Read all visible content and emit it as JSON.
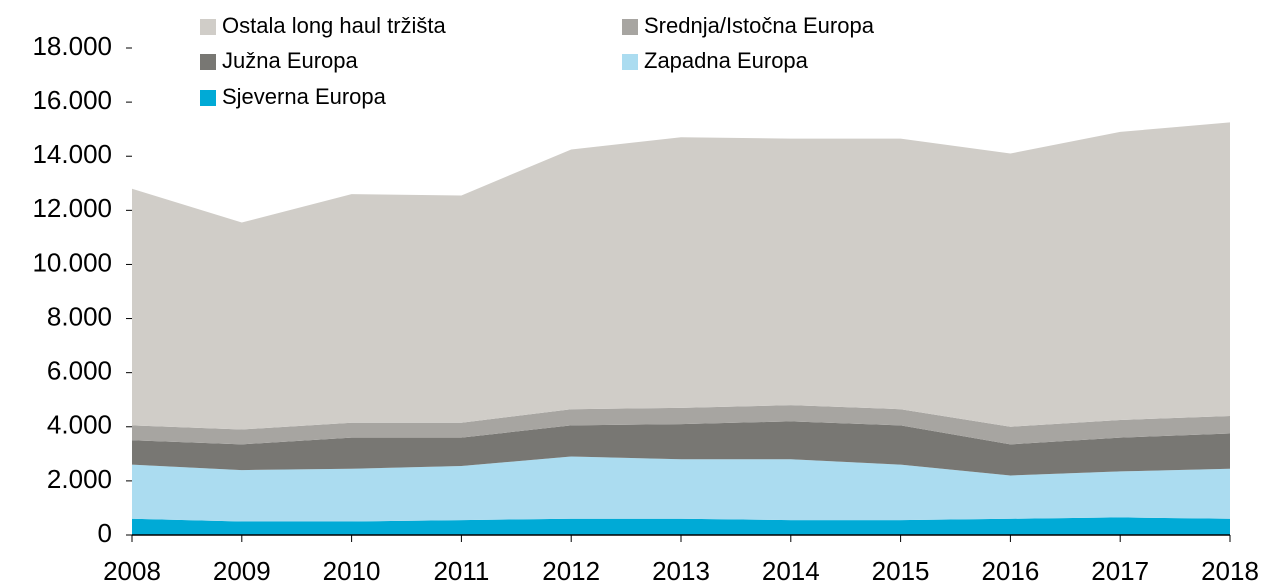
{
  "chart_data": {
    "type": "stacked-area",
    "x": [
      2008,
      2009,
      2010,
      2011,
      2012,
      2013,
      2014,
      2015,
      2016,
      2017,
      2018
    ],
    "xlim": [
      2008,
      2018
    ],
    "xticks": [
      2008,
      2009,
      2010,
      2011,
      2012,
      2013,
      2014,
      2015,
      2016,
      2017,
      2018
    ],
    "ylim": [
      0,
      18000
    ],
    "yticks": [
      0,
      {
        "value": 2000,
        "label": "2.000"
      },
      {
        "value": 4000,
        "label": "4.000"
      },
      {
        "value": 6000,
        "label": "6.000"
      },
      {
        "value": 8000,
        "label": "8.000"
      },
      {
        "value": 10000,
        "label": "10.000"
      },
      {
        "value": 12000,
        "label": "12.000"
      },
      {
        "value": 14000,
        "label": "14.000"
      },
      {
        "value": 16000,
        "label": "16.000"
      },
      {
        "value": 18000,
        "label": "18.000"
      }
    ],
    "series": [
      {
        "name": "Sjeverna Europa",
        "color": "#00aad6",
        "values": [
          600,
          500,
          500,
          550,
          600,
          600,
          550,
          550,
          600,
          650,
          600
        ]
      },
      {
        "name": "Zapadna Europa",
        "color": "#abdcf0",
        "values": [
          2000,
          1900,
          1950,
          2000,
          2300,
          2200,
          2250,
          2050,
          1600,
          1700,
          1850
        ]
      },
      {
        "name": "Južna Europa",
        "color": "#787773",
        "values": [
          900,
          950,
          1150,
          1050,
          1150,
          1300,
          1400,
          1450,
          1150,
          1250,
          1300
        ]
      },
      {
        "name": "Srednja/Istočna Europa",
        "color": "#a7a5a1",
        "values": [
          550,
          550,
          550,
          550,
          600,
          600,
          600,
          600,
          650,
          650,
          650
        ]
      },
      {
        "name": "Ostala long haul tržišta",
        "color": "#d0cdc8",
        "values": [
          8750,
          7650,
          8450,
          8400,
          9600,
          10000,
          9850,
          10000,
          10100,
          10650,
          10850
        ]
      }
    ]
  }
}
